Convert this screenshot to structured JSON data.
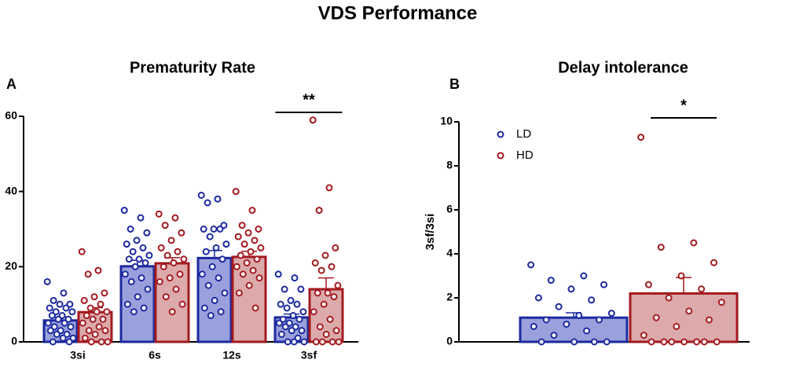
{
  "title": "VDS Performance",
  "chart_data": [
    {
      "type": "bar",
      "title": "Prematurity Rate",
      "panel_label": "A",
      "annotation": "**",
      "categories": [
        "3si",
        "6s",
        "12s",
        "3sf"
      ],
      "ylim": [
        0,
        60
      ],
      "yticks": [
        0,
        20,
        40,
        60
      ],
      "legend": false,
      "series": [
        {
          "color": "#1c2a9e",
          "fill": "#9aa0dc",
          "values": [
            5.7,
            20.1,
            22.3,
            6.5
          ],
          "errors": [
            0.9,
            1.6,
            2.0,
            0.9
          ],
          "points": [
            [
              16,
              13,
              11,
              10,
              10,
              9,
              9,
              8,
              8,
              7,
              7,
              6,
              6,
              5,
              5,
              4,
              4,
              3,
              3,
              2,
              2,
              1,
              1,
              0,
              0
            ],
            [
              35,
              33,
              30,
              29,
              27,
              26,
              25,
              24,
              23,
              22,
              22,
              21,
              20,
              18,
              17,
              16,
              14,
              12,
              10,
              9,
              8
            ],
            [
              39,
              38,
              37,
              31,
              30,
              30,
              30,
              28,
              26,
              25,
              24,
              22,
              20,
              18,
              17,
              15,
              13,
              11,
              9,
              8,
              7
            ],
            [
              18,
              17,
              14,
              14,
              11,
              10,
              10,
              9,
              8,
              7,
              6,
              6,
              5,
              5,
              4,
              4,
              3,
              3,
              2,
              1,
              0,
              0,
              0
            ]
          ]
        },
        {
          "color": "#a31a1f",
          "fill": "#dcaaab",
          "values": [
            7.9,
            20.9,
            22.6,
            14
          ],
          "errors": [
            1.2,
            1.5,
            1.5,
            3
          ],
          "points": [
            [
              24,
              19,
              18,
              13,
              12,
              11,
              10,
              9,
              8,
              8,
              7,
              6,
              6,
              5,
              4,
              3,
              3,
              2,
              1,
              0,
              0,
              0
            ],
            [
              34,
              33,
              31,
              29,
              27,
              25,
              24,
              23,
              22,
              21,
              20,
              18,
              17,
              16,
              14,
              12,
              10,
              8
            ],
            [
              40,
              35,
              31,
              30,
              29,
              28,
              27,
              26,
              25,
              24,
              23,
              22,
              21,
              20,
              19,
              18,
              17,
              15,
              13,
              9
            ],
            [
              59,
              41,
              35,
              25,
              23,
              21,
              20,
              19,
              15,
              13,
              13,
              12,
              10,
              8,
              6,
              4,
              3,
              2,
              0,
              0,
              0,
              0
            ]
          ]
        }
      ]
    },
    {
      "type": "bar",
      "title": "Delay intolerance",
      "panel_label": "B",
      "annotation": "*",
      "ylabel": "3sf/3si",
      "categories": [
        null
      ],
      "ylim": [
        0,
        10
      ],
      "yticks": [
        0,
        2,
        4,
        6,
        8,
        10
      ],
      "legend": "upper left",
      "series": [
        {
          "name": "LD",
          "color": "#1c2a9e",
          "fill": "#9aa0dc",
          "values": [
            1.1
          ],
          "errors": [
            0.22
          ],
          "points": [
            [
              3.5,
              3.0,
              2.8,
              2.6,
              2.4,
              2.0,
              1.9,
              1.6,
              1.3,
              1.2,
              1.0,
              1.0,
              0.8,
              0.7,
              0.5,
              0.3,
              0,
              0,
              0,
              0
            ]
          ]
        },
        {
          "name": "HD",
          "color": "#a31a1f",
          "fill": "#dcaaab",
          "values": [
            2.2
          ],
          "errors": [
            0.72
          ],
          "points": [
            [
              9.3,
              4.5,
              4.3,
              3.6,
              3.0,
              2.6,
              2.4,
              2.0,
              1.8,
              1.4,
              1.1,
              1.0,
              0.7,
              0.3,
              0,
              0,
              0,
              0,
              0,
              0,
              0
            ]
          ]
        }
      ]
    }
  ]
}
